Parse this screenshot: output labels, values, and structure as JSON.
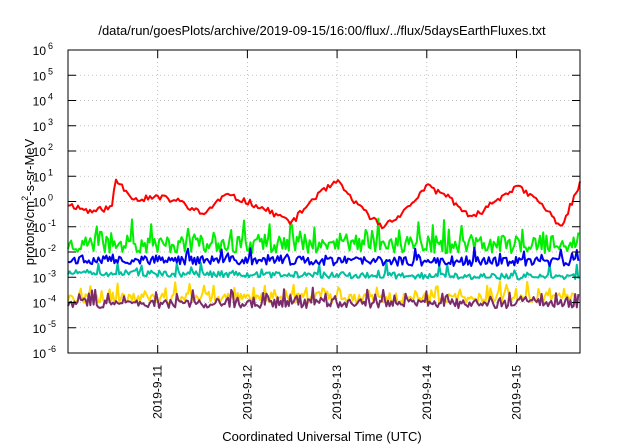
{
  "chart_data": {
    "type": "line",
    "title": "/data/run/goesPlots/archive/2019-09-15/16:00/flux/../flux/5daysEarthFluxes.txt",
    "xlabel": "Coordinated Universal Time (UTC)",
    "ylabel": "protons/cm²-s-sr-MeV",
    "y_scale": "log",
    "ylim": [
      1e-06,
      1000000.0
    ],
    "xlim": [
      "2019-09-10 00:00",
      "2019-09-15 17:00"
    ],
    "grid": true,
    "y_ticks": [
      {
        "value": 1e-06,
        "base": "10",
        "exp": "-6"
      },
      {
        "value": 1e-05,
        "base": "10",
        "exp": "-5"
      },
      {
        "value": 0.0001,
        "base": "10",
        "exp": "-4"
      },
      {
        "value": 0.001,
        "base": "10",
        "exp": "-3"
      },
      {
        "value": 0.01,
        "base": "10",
        "exp": "-2"
      },
      {
        "value": 0.1,
        "base": "10",
        "exp": "-1"
      },
      {
        "value": 1,
        "base": "10",
        "exp": "0"
      },
      {
        "value": 10,
        "base": "10",
        "exp": "1"
      },
      {
        "value": 100,
        "base": "10",
        "exp": "2"
      },
      {
        "value": 1000,
        "base": "10",
        "exp": "3"
      },
      {
        "value": 10000,
        "base": "10",
        "exp": "4"
      },
      {
        "value": 100000,
        "base": "10",
        "exp": "5"
      },
      {
        "value": 1000000,
        "base": "10",
        "exp": "6"
      }
    ],
    "x_ticks": [
      "2019-9-11",
      "2019-9-12",
      "2019-9-13",
      "2019-9-14",
      "2019-9-15"
    ],
    "series": [
      {
        "color": "#ff0000",
        "x": [
          "2019-09-10 00:00",
          "2019-09-10 06:00",
          "2019-09-10 12:00",
          "2019-09-10 12:30",
          "2019-09-10 18:00",
          "2019-09-11 00:00",
          "2019-09-11 06:00",
          "2019-09-11 12:00",
          "2019-09-11 18:00",
          "2019-09-12 00:00",
          "2019-09-12 06:00",
          "2019-09-12 12:00",
          "2019-09-12 18:00",
          "2019-09-13 00:00",
          "2019-09-13 06:00",
          "2019-09-13 12:00",
          "2019-09-13 18:00",
          "2019-09-14 00:00",
          "2019-09-14 06:00",
          "2019-09-14 12:00",
          "2019-09-14 18:00",
          "2019-09-15 00:00",
          "2019-09-15 06:00",
          "2019-09-15 12:00",
          "2019-09-15 17:00"
        ],
        "values": [
          0.8,
          0.4,
          0.6,
          8,
          1.2,
          1.5,
          1.0,
          0.3,
          1.8,
          1.0,
          0.4,
          0.15,
          1.5,
          6.0,
          0.6,
          0.1,
          0.4,
          4.0,
          1.5,
          0.2,
          1.0,
          4.0,
          1.0,
          0.1,
          5.0
        ]
      },
      {
        "color": "#00ee00",
        "x": [
          "2019-09-10 00:00",
          "2019-09-15 17:00"
        ],
        "values": [
          0.02,
          0.02
        ]
      },
      {
        "color": "#0000ee",
        "x": [
          "2019-09-10 00:00",
          "2019-09-15 17:00"
        ],
        "values": [
          0.005,
          0.004
        ]
      },
      {
        "color": "#00c0a0",
        "x": [
          "2019-09-10 00:00",
          "2019-09-15 17:00"
        ],
        "values": [
          0.0015,
          0.001
        ]
      },
      {
        "color": "#ffd700",
        "x": [
          "2019-09-10 00:00",
          "2019-09-15 17:00"
        ],
        "values": [
          0.00015,
          0.00015
        ]
      },
      {
        "color": "#7b2a6e",
        "x": [
          "2019-09-10 00:00",
          "2019-09-15 17:00"
        ],
        "values": [
          9e-05,
          9e-05
        ]
      }
    ]
  }
}
